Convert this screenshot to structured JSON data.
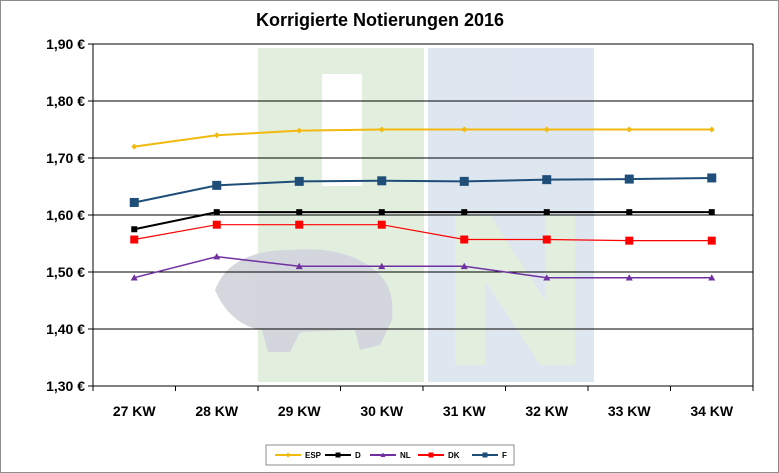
{
  "chart_data": {
    "type": "line",
    "title": "Korrigierte Notierungen 2016",
    "xlabel": "",
    "ylabel": "",
    "categories": [
      "27 KW",
      "28 KW",
      "29 KW",
      "30 KW",
      "31 KW",
      "32 KW",
      "33 KW",
      "34 KW"
    ],
    "ylim": [
      1.3,
      1.9
    ],
    "yticks": [
      "1,90 €",
      "1,80 €",
      "1,70 €",
      "1,60 €",
      "1,50 €",
      "1,40 €",
      "1,30 €"
    ],
    "grid": true,
    "legend_position": "bottom",
    "series": [
      {
        "name": "ESP",
        "color": "#f2b90f",
        "marker": "diamond",
        "values": [
          1.72,
          1.74,
          1.748,
          1.75,
          1.75,
          1.75,
          1.75,
          1.75
        ]
      },
      {
        "name": "D",
        "color": "#000000",
        "marker": "square",
        "values": [
          1.575,
          1.605,
          1.605,
          1.605,
          1.605,
          1.605,
          1.605,
          1.605
        ]
      },
      {
        "name": "NL",
        "color": "#7030a0",
        "marker": "triangle",
        "values": [
          1.49,
          1.527,
          1.51,
          1.51,
          1.51,
          1.49,
          1.49,
          1.49
        ]
      },
      {
        "name": "DK",
        "color": "#ff0000",
        "marker": "square",
        "values": [
          1.557,
          1.583,
          1.583,
          1.583,
          1.557,
          1.557,
          1.555,
          1.555
        ]
      },
      {
        "name": "F",
        "color": "#1f4e79",
        "marker": "square",
        "values": [
          1.622,
          1.652,
          1.659,
          1.66,
          1.659,
          1.662,
          1.663,
          1.665
        ]
      }
    ]
  }
}
